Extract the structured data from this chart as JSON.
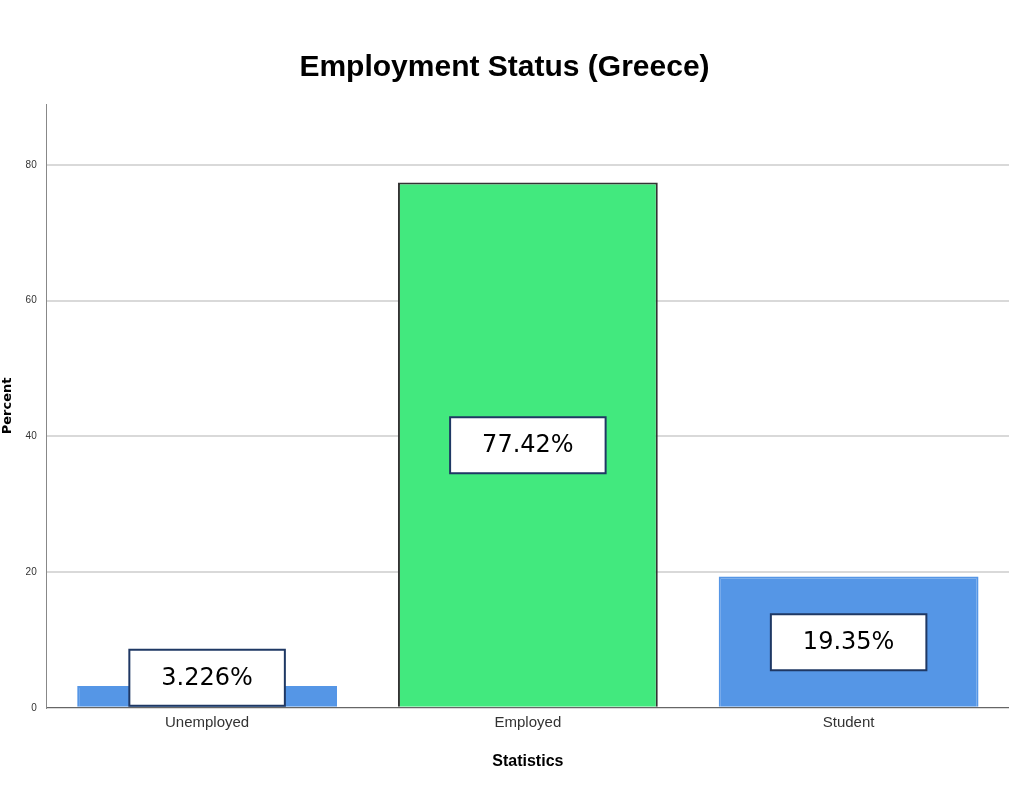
{
  "chart_data": {
    "type": "bar",
    "title": "Employment Status (Greece)",
    "xlabel": "Statistics",
    "ylabel": "Percent",
    "categories": [
      "Unemployed",
      "Employed",
      "Student"
    ],
    "values": [
      3.226,
      77.42,
      19.35
    ],
    "colors": [
      "#5596e6",
      "#42e97e",
      "#5596e6"
    ],
    "value_labels": [
      "3.226%",
      "77.42%",
      "19.35%"
    ],
    "ylim": [
      0,
      89
    ],
    "yticks": [
      0,
      20,
      40,
      60,
      80
    ],
    "grid": "y",
    "legend": false
  }
}
